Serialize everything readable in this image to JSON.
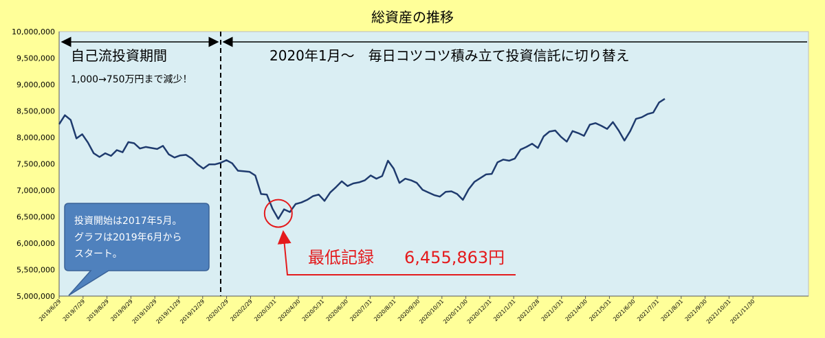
{
  "chart_data": {
    "type": "line",
    "title": "総資産の推移",
    "xlabel": "",
    "ylabel": "",
    "ylim": [
      5000000,
      10000000
    ],
    "y_ticks": [
      "5,000,000",
      "5,500,000",
      "6,000,000",
      "6,500,000",
      "7,000,000",
      "7,500,000",
      "8,000,000",
      "8,500,000",
      "9,000,000",
      "9,500,000",
      "10,000,000"
    ],
    "y_tick_values": [
      5000000,
      5500000,
      6000000,
      6500000,
      7000000,
      7500000,
      8000000,
      8500000,
      9000000,
      9500000,
      10000000
    ],
    "x_ticks": [
      "2019/6/29",
      "2019/7/29",
      "2019/8/29",
      "2019/9/29",
      "2019/10/29",
      "2019/11/29",
      "2019/12/29",
      "2020/1/29",
      "2020/2/29",
      "2020/3/31",
      "2020/4/30",
      "2020/5/31",
      "2020/6/30",
      "2020/7/31",
      "2020/8/31",
      "2020/9/30",
      "2020/10/31",
      "2020/11/30",
      "2020/12/31",
      "2021/1/31",
      "2021/2/28",
      "2021/3/31",
      "2021/4/30",
      "2021/5/31",
      "2021/6/30",
      "2021/7/31",
      "2021/8/31",
      "2021/9/30",
      "2021/10/31",
      "2021/11/30"
    ],
    "grid": false,
    "line_color": "#1f3b6e",
    "series": [
      {
        "values": [
          8250000,
          8420000,
          8330000,
          7980000,
          8060000,
          7900000,
          7700000,
          7630000,
          7700000,
          7650000,
          7760000,
          7720000,
          7910000,
          7890000,
          7790000,
          7820000,
          7800000,
          7780000,
          7840000,
          7680000,
          7620000,
          7660000,
          7670000,
          7600000,
          7490000,
          7410000,
          7490000,
          7490000,
          7520000,
          7570000,
          7510000,
          7370000,
          7360000,
          7350000,
          7280000,
          6930000,
          6920000,
          6650000,
          6460000,
          6640000,
          6590000,
          6740000,
          6770000,
          6820000,
          6890000,
          6920000,
          6800000,
          6960000,
          7060000,
          7170000,
          7080000,
          7130000,
          7150000,
          7190000,
          7280000,
          7220000,
          7270000,
          7560000,
          7410000,
          7140000,
          7220000,
          7190000,
          7140000,
          7010000,
          6960000,
          6910000,
          6880000,
          6970000,
          6980000,
          6930000,
          6820000,
          7020000,
          7160000,
          7230000,
          7300000,
          7310000,
          7530000,
          7580000,
          7560000,
          7600000,
          7770000,
          7820000,
          7880000,
          7800000,
          8020000,
          8110000,
          8130000,
          8010000,
          7920000,
          8120000,
          8080000,
          8030000,
          8240000,
          8270000,
          8220000,
          8160000,
          8290000,
          8130000,
          7940000,
          8120000,
          8350000,
          8380000,
          8440000,
          8470000,
          8660000,
          8730000
        ]
      }
    ],
    "annotations": {
      "period1": "自己流投資期間",
      "period1_note": "1,000→750万円まで減少！",
      "period2": "2020年1月～　毎日コツコツ積み立て投資信託に切り替え",
      "callout_line1": "投資開始は2017年5月。",
      "callout_line2": "グラフは2019年6月から",
      "callout_line3": "スタート。",
      "min_label": "最低記録",
      "min_value": "6,455,863円"
    },
    "colors": {
      "background": "#ffff99",
      "plot_area": "#daeef3",
      "line": "#1f3b6e",
      "callout_fill": "#4f81bd",
      "highlight": "#e41a1c"
    }
  }
}
